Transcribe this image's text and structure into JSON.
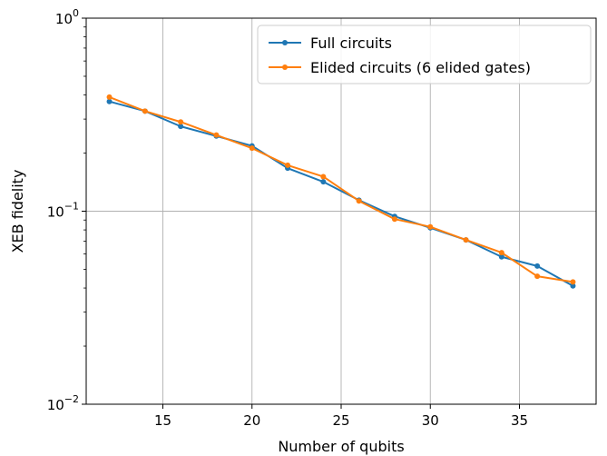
{
  "chart_data": {
    "type": "line",
    "xlabel": "Number of qubits",
    "ylabel": "XEB fidelity",
    "yscale": "log",
    "xlim": [
      10.7,
      39.3
    ],
    "ylim": [
      0.01,
      1
    ],
    "xticks": [
      "15",
      "20",
      "25",
      "30",
      "35"
    ],
    "xtick_values": [
      15,
      20,
      25,
      30,
      35
    ],
    "yticks": [
      {
        "value": 1,
        "base": "10",
        "exp": "0"
      },
      {
        "value": 0.1,
        "base": "10",
        "exp": "−1"
      },
      {
        "value": 0.01,
        "base": "10",
        "exp": "−2"
      }
    ],
    "grid": true,
    "legend_position": "top-right",
    "x": [
      12,
      14,
      16,
      18,
      20,
      22,
      24,
      26,
      28,
      30,
      32,
      34,
      36,
      38
    ],
    "series": [
      {
        "name": "Full circuits",
        "color": "#1f77b4",
        "values": [
          0.37,
          0.33,
          0.275,
          0.245,
          0.218,
          0.167,
          0.142,
          0.114,
          0.094,
          0.082,
          0.071,
          0.058,
          0.052,
          0.041
        ]
      },
      {
        "name": "Elided circuits (6 elided gates)",
        "color": "#ff7f0e",
        "values": [
          0.39,
          0.33,
          0.29,
          0.248,
          0.212,
          0.173,
          0.151,
          0.113,
          0.091,
          0.083,
          0.071,
          0.061,
          0.046,
          0.043
        ]
      }
    ]
  }
}
